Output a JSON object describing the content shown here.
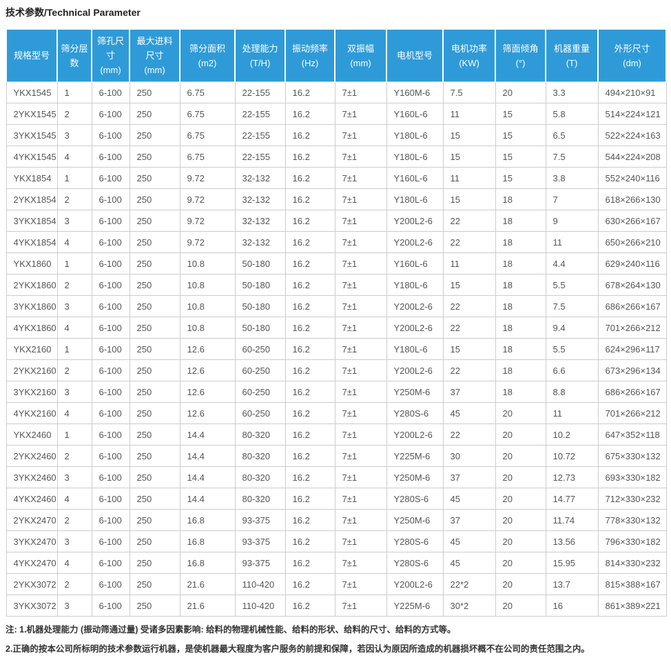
{
  "page_title": "技术参数/Technical Parameter",
  "colors": {
    "header_bg": "#2e9bd8",
    "header_text": "#ffffff",
    "grid_border": "#cccccc",
    "cell_text": "#555555",
    "note_text": "#333333",
    "title_text": "#222222"
  },
  "table": {
    "columns": [
      {
        "id": "model",
        "lines": [
          "规格型号"
        ]
      },
      {
        "id": "layers",
        "lines": [
          "筛分层",
          "数"
        ]
      },
      {
        "id": "hole",
        "lines": [
          "筛孔尺",
          "寸",
          "(mm)"
        ]
      },
      {
        "id": "feed",
        "lines": [
          "最大进料",
          "尺寸",
          "(mm)"
        ]
      },
      {
        "id": "area",
        "lines": [
          "筛分面积",
          "(m2)"
        ]
      },
      {
        "id": "capacity",
        "lines": [
          "处理能力",
          "(T/H)"
        ]
      },
      {
        "id": "frequency",
        "lines": [
          "振动频率",
          "(Hz)"
        ]
      },
      {
        "id": "amplitude",
        "lines": [
          "双振幅",
          "(mm)"
        ]
      },
      {
        "id": "motor",
        "lines": [
          "电机型号"
        ]
      },
      {
        "id": "power",
        "lines": [
          "电机功率",
          "(KW)"
        ]
      },
      {
        "id": "incline",
        "lines": [
          "筛面倾角",
          "(°)"
        ]
      },
      {
        "id": "weight",
        "lines": [
          "机器重量",
          "(T)"
        ]
      },
      {
        "id": "dims",
        "lines": [
          "外形尺寸",
          "(dm)"
        ]
      }
    ],
    "rows": [
      [
        "YKX1545",
        "1",
        "6-100",
        "250",
        "6.75",
        "22-155",
        "16.2",
        "7±1",
        "Y160M-6",
        "7.5",
        "20",
        "3.3",
        "494×210×91"
      ],
      [
        "2YKX1545",
        "2",
        "6-100",
        "250",
        "6.75",
        "22-155",
        "16.2",
        "7±1",
        "Y160L-6",
        "11",
        "15",
        "5.8",
        "514×224×121"
      ],
      [
        "3YKX1545",
        "3",
        "6-100",
        "250",
        "6.75",
        "22-155",
        "16.2",
        "7±1",
        "Y180L-6",
        "15",
        "15",
        "6.5",
        "522×224×163"
      ],
      [
        "4YKX1545",
        "4",
        "6-100",
        "250",
        "6.75",
        "22-155",
        "16.2",
        "7±1",
        "Y180L-6",
        "15",
        "15",
        "7.5",
        "544×224×208"
      ],
      [
        "YKX1854",
        "1",
        "6-100",
        "250",
        "9.72",
        "32-132",
        "16.2",
        "7±1",
        "Y160L-6",
        "11",
        "15",
        "3.8",
        "552×240×116"
      ],
      [
        "2YKX1854",
        "2",
        "6-100",
        "250",
        "9.72",
        "32-132",
        "16.2",
        "7±1",
        "Y180L-6",
        "15",
        "18",
        "7",
        "618×266×130"
      ],
      [
        "3YKX1854",
        "3",
        "6-100",
        "250",
        "9.72",
        "32-132",
        "16.2",
        "7±1",
        "Y200L2-6",
        "22",
        "18",
        "9",
        "630×266×167"
      ],
      [
        "4YKX1854",
        "4",
        "6-100",
        "250",
        "9.72",
        "32-132",
        "16.2",
        "7±1",
        "Y200L2-6",
        "22",
        "18",
        "11",
        "650×266×210"
      ],
      [
        "YKX1860",
        "1",
        "6-100",
        "250",
        "10.8",
        "50-180",
        "16.2",
        "7±1",
        "Y160L-6",
        "11",
        "18",
        "4.4",
        "629×240×116"
      ],
      [
        "2YKX1860",
        "2",
        "6-100",
        "250",
        "10.8",
        "50-180",
        "16.2",
        "7±1",
        "Y180L-6",
        "15",
        "18",
        "5.5",
        "678×264×130"
      ],
      [
        "3YKX1860",
        "3",
        "6-100",
        "250",
        "10.8",
        "50-180",
        "16.2",
        "7±1",
        "Y200L2-6",
        "22",
        "18",
        "7.5",
        "686×266×167"
      ],
      [
        "4YKX1860",
        "4",
        "6-100",
        "250",
        "10.8",
        "50-180",
        "16.2",
        "7±1",
        "Y200L2-6",
        "22",
        "18",
        "9.4",
        "701×266×212"
      ],
      [
        "YKX2160",
        "1",
        "6-100",
        "250",
        "12.6",
        "60-250",
        "16.2",
        "7±1",
        "Y180L-6",
        "15",
        "18",
        "5.5",
        "624×296×117"
      ],
      [
        "2YKX2160",
        "2",
        "6-100",
        "250",
        "12.6",
        "60-250",
        "16.2",
        "7±1",
        "Y200L2-6",
        "22",
        "18",
        "6.6",
        "673×296×134"
      ],
      [
        "3YKX2160",
        "3",
        "6-100",
        "250",
        "12.6",
        "60-250",
        "16.2",
        "7±1",
        "Y250M-6",
        "37",
        "18",
        "8.8",
        "686×266×167"
      ],
      [
        "4YKX2160",
        "4",
        "6-100",
        "250",
        "12.6",
        "60-250",
        "16.2",
        "7±1",
        "Y280S-6",
        "45",
        "20",
        "11",
        "701×266×212"
      ],
      [
        "YKX2460",
        "1",
        "6-100",
        "250",
        "14.4",
        "80-320",
        "16.2",
        "7±1",
        "Y200L2-6",
        "22",
        "20",
        "10.2",
        "647×352×118"
      ],
      [
        "2YKX2460",
        "2",
        "6-100",
        "250",
        "14.4",
        "80-320",
        "16.2",
        "7±1",
        "Y225M-6",
        "30",
        "20",
        "10.72",
        "675×330×132"
      ],
      [
        "3YKX2460",
        "3",
        "6-100",
        "250",
        "14.4",
        "80-320",
        "16.2",
        "7±1",
        "Y250M-6",
        "37",
        "20",
        "12.73",
        "693×330×182"
      ],
      [
        "4YKX2460",
        "4",
        "6-100",
        "250",
        "14.4",
        "80-320",
        "16.2",
        "7±1",
        "Y280S-6",
        "45",
        "20",
        "14.77",
        "712×330×232"
      ],
      [
        "2YKX2470",
        "2",
        "6-100",
        "250",
        "16.8",
        "93-375",
        "16.2",
        "7±1",
        "Y250M-6",
        "37",
        "20",
        "11.74",
        "778×330×132"
      ],
      [
        "3YKX2470",
        "3",
        "6-100",
        "250",
        "16.8",
        "93-375",
        "16.2",
        "7±1",
        "Y280S-6",
        "45",
        "20",
        "13.56",
        "796×330×182"
      ],
      [
        "4YKX2470",
        "4",
        "6-100",
        "250",
        "16.8",
        "93-375",
        "16.2",
        "7±1",
        "Y280S-6",
        "45",
        "20",
        "15.95",
        "814×330×232"
      ],
      [
        "2YKX3072",
        "2",
        "6-100",
        "250",
        "21.6",
        "110-420",
        "16.2",
        "7±1",
        "Y200L2-6",
        "22*2",
        "20",
        "13.7",
        "815×388×167"
      ],
      [
        "3YKX3072",
        "3",
        "6-100",
        "250",
        "21.6",
        "110-420",
        "16.2",
        "7±1",
        "Y225M-6",
        "30*2",
        "20",
        "16",
        "861×389×221"
      ]
    ]
  },
  "notes": [
    "注: 1.机器处理能力 (振动筛通过量) 受诸多因素影响: 给料的物理机械性能、给料的形状、给料的尺寸、给料的方式等。",
    "2.正确的按本公司所标明的技术参数运行机器，是使机器最大程度为客户服务的前提和保障，若因认为原因所造成的机器损坏概不在公司的责任范围之内。"
  ]
}
